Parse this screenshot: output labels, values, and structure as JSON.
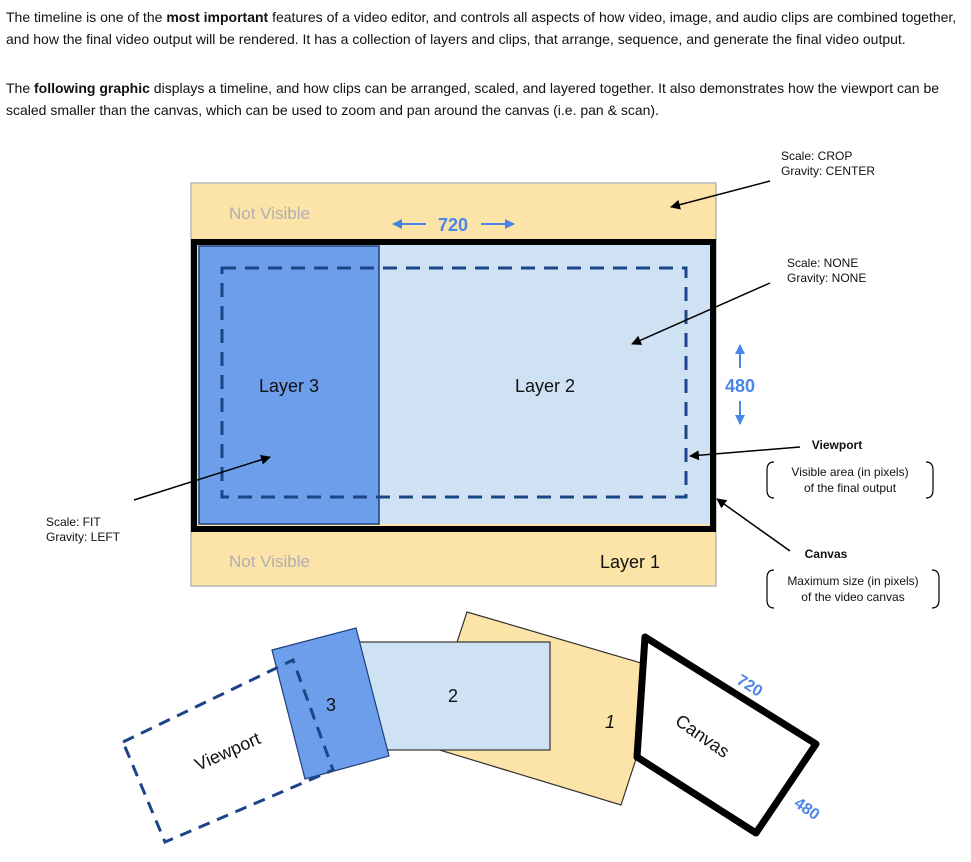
{
  "intro": {
    "p1": {
      "before": "The timeline is one of the ",
      "bold": "most important",
      "after": " features of a video editor, and controls all aspects of how video, image, and audio clips are combined together, and how the final video output will be rendered. It has a collection of layers and clips, that arrange, sequence, and generate the final video output."
    },
    "p2": {
      "before": "The ",
      "bold": "following graphic",
      "after": " displays a timeline, and how clips can be arranged, scaled, and layered together. It also demonstrates how the viewport can be scaled smaller than the canvas, which can be used to zoom and pan around the canvas (i.e. pan & scan)."
    }
  },
  "diagram": {
    "not_visible_top": "Not Visible",
    "not_visible_bottom": "Not Visible",
    "layer1": "Layer 1",
    "layer2": "Layer 2",
    "layer3": "Layer 3",
    "width": "720",
    "height": "480",
    "crop_scale": "Scale: CROP",
    "crop_gravity": "Gravity: CENTER",
    "none_scale": "Scale: NONE",
    "none_gravity": "Gravity: NONE",
    "fit_scale": "Scale: FIT",
    "fit_gravity": "Gravity: LEFT",
    "viewport_title": "Viewport",
    "viewport_desc1": "Visible area (in pixels)",
    "viewport_desc2": "of the final output",
    "canvas_title": "Canvas",
    "canvas_desc1": "Maximum size (in pixels)",
    "canvas_desc2": "of the video canvas",
    "colors": {
      "layer1": "#fce4a8",
      "layer2": "#cfe2f3",
      "layer3": "#6d9eeb",
      "accent": "#4a86e8",
      "dashed": "#1c4587"
    }
  },
  "stack": {
    "viewport": "Viewport",
    "layer3": "3",
    "layer2": "2",
    "layer1": "1",
    "canvas": "Canvas",
    "width": "720",
    "height": "480"
  }
}
